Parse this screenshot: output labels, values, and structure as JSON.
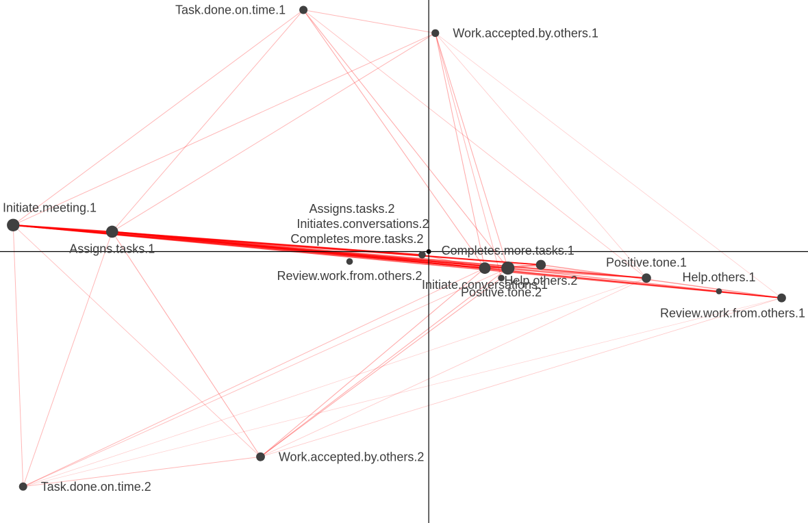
{
  "chart_data": {
    "type": "scatter",
    "title": "",
    "xlabel": "",
    "ylabel": "",
    "xlim": [
      -1.3,
      1.15
    ],
    "ylim": [
      -0.82,
      0.76
    ],
    "grid": false,
    "axes_through_origin": true,
    "colors": {
      "points": "#404040",
      "edges": "#ff0000",
      "axes": "#000000",
      "origin": "#000000"
    },
    "nodes": [
      {
        "id": "n1",
        "label": "Task.done.on.time.1",
        "x": -0.38,
        "y": 0.73,
        "size": 1.5,
        "label_pos": "left"
      },
      {
        "id": "n2",
        "label": "Work.accepted.by.others.1",
        "x": 0.02,
        "y": 0.66,
        "size": 1.4,
        "label_pos": "right"
      },
      {
        "id": "n3",
        "label": "Initiate.meeting.1",
        "x": -1.26,
        "y": 0.08,
        "size": 2.3,
        "label_pos": "above"
      },
      {
        "id": "n4",
        "label": "Assigns.tasks.1",
        "x": -0.96,
        "y": 0.06,
        "size": 2.2,
        "label_pos": "below"
      },
      {
        "id": "n5",
        "label": "Assigns.tasks.2",
        "x": -0.02,
        "y": -0.01,
        "size": 1.3,
        "label_pos": "above3"
      },
      {
        "id": "n6",
        "label": "Initiates.conversations.2",
        "x": -0.02,
        "y": -0.01,
        "size": 1.3,
        "label_pos": "above2"
      },
      {
        "id": "n7",
        "label": "Completes.more.tasks.2",
        "x": -0.02,
        "y": -0.01,
        "size": 1.3,
        "label_pos": "above1"
      },
      {
        "id": "n8",
        "label": "Review.work.from.others.2",
        "x": -0.24,
        "y": -0.03,
        "size": 1.2,
        "label_pos": "below"
      },
      {
        "id": "n9",
        "label": "Initiate.conversations.1",
        "x": 0.17,
        "y": -0.05,
        "size": 2.1,
        "label_pos": "below"
      },
      {
        "id": "n10",
        "label": "Completes.more.tasks.1",
        "x": 0.24,
        "y": -0.05,
        "size": 2.4,
        "label_pos": "above"
      },
      {
        "id": "n11",
        "label": "Help.others.2",
        "x": 0.34,
        "y": -0.04,
        "size": 1.8,
        "label_pos": "below"
      },
      {
        "id": "n12",
        "label": "Positive.tone.2",
        "x": 0.22,
        "y": -0.08,
        "size": 1.2,
        "label_pos": "below"
      },
      {
        "id": "n13",
        "label": "Positive.tone.1",
        "x": 0.66,
        "y": -0.08,
        "size": 1.7,
        "label_pos": "above"
      },
      {
        "id": "n14",
        "label": "Help.others.1",
        "x": 0.88,
        "y": -0.12,
        "size": 1.1,
        "label_pos": "above"
      },
      {
        "id": "n15",
        "label": "Review.work.from.others.1",
        "x": 1.07,
        "y": -0.14,
        "size": 1.6,
        "label_pos": "below"
      },
      {
        "id": "n16",
        "label": "Work.accepted.by.others.2",
        "x": -0.51,
        "y": -0.62,
        "size": 1.6,
        "label_pos": "right"
      },
      {
        "id": "n17",
        "label": "Task.done.on.time.2",
        "x": -1.23,
        "y": -0.71,
        "size": 1.5,
        "label_pos": "right"
      }
    ],
    "edges": [
      {
        "a": "n3",
        "b": "n9",
        "w": 0.95
      },
      {
        "a": "n3",
        "b": "n10",
        "w": 0.95
      },
      {
        "a": "n3",
        "b": "n11",
        "w": 0.8
      },
      {
        "a": "n3",
        "b": "n15",
        "w": 0.7
      },
      {
        "a": "n3",
        "b": "n5",
        "w": 0.75
      },
      {
        "a": "n3",
        "b": "n13",
        "w": 0.6
      },
      {
        "a": "n4",
        "b": "n9",
        "w": 0.95
      },
      {
        "a": "n4",
        "b": "n10",
        "w": 0.9
      },
      {
        "a": "n4",
        "b": "n11",
        "w": 0.8
      },
      {
        "a": "n4",
        "b": "n15",
        "w": 0.7
      },
      {
        "a": "n4",
        "b": "n13",
        "w": 0.6
      },
      {
        "a": "n4",
        "b": "n5",
        "w": 0.7
      },
      {
        "a": "n3",
        "b": "n4",
        "w": 0.9
      },
      {
        "a": "n9",
        "b": "n15",
        "w": 0.5
      },
      {
        "a": "n10",
        "b": "n15",
        "w": 0.5
      },
      {
        "a": "n11",
        "b": "n15",
        "w": 0.45
      },
      {
        "a": "n9",
        "b": "n13",
        "w": 0.45
      },
      {
        "a": "n10",
        "b": "n13",
        "w": 0.45
      },
      {
        "a": "n1",
        "b": "n3",
        "w": 0.25
      },
      {
        "a": "n1",
        "b": "n4",
        "w": 0.25
      },
      {
        "a": "n1",
        "b": "n2",
        "w": 0.25
      },
      {
        "a": "n1",
        "b": "n9",
        "w": 0.3
      },
      {
        "a": "n1",
        "b": "n10",
        "w": 0.3
      },
      {
        "a": "n1",
        "b": "n13",
        "w": 0.18
      },
      {
        "a": "n2",
        "b": "n3",
        "w": 0.25
      },
      {
        "a": "n2",
        "b": "n4",
        "w": 0.25
      },
      {
        "a": "n2",
        "b": "n9",
        "w": 0.3
      },
      {
        "a": "n2",
        "b": "n10",
        "w": 0.3
      },
      {
        "a": "n2",
        "b": "n13",
        "w": 0.15
      },
      {
        "a": "n2",
        "b": "n15",
        "w": 0.12
      },
      {
        "a": "n2",
        "b": "n12",
        "w": 0.25
      },
      {
        "a": "n3",
        "b": "n17",
        "w": 0.25
      },
      {
        "a": "n3",
        "b": "n16",
        "w": 0.2
      },
      {
        "a": "n4",
        "b": "n17",
        "w": 0.25
      },
      {
        "a": "n4",
        "b": "n16",
        "w": 0.3
      },
      {
        "a": "n17",
        "b": "n16",
        "w": 0.25
      },
      {
        "a": "n17",
        "b": "n9",
        "w": 0.25
      },
      {
        "a": "n17",
        "b": "n10",
        "w": 0.2
      },
      {
        "a": "n17",
        "b": "n13",
        "w": 0.12
      },
      {
        "a": "n17",
        "b": "n15",
        "w": 0.1
      },
      {
        "a": "n16",
        "b": "n9",
        "w": 0.3
      },
      {
        "a": "n16",
        "b": "n10",
        "w": 0.3
      },
      {
        "a": "n16",
        "b": "n12",
        "w": 0.3
      },
      {
        "a": "n16",
        "b": "n15",
        "w": 0.15
      },
      {
        "a": "n16",
        "b": "n13",
        "w": 0.15
      },
      {
        "a": "n9",
        "b": "n11",
        "w": 0.4
      },
      {
        "a": "n10",
        "b": "n11",
        "w": 0.4
      },
      {
        "a": "n9",
        "b": "n10",
        "w": 0.4
      },
      {
        "a": "n5",
        "b": "n9",
        "w": 0.35
      },
      {
        "a": "n5",
        "b": "n13",
        "w": 0.2
      }
    ]
  }
}
